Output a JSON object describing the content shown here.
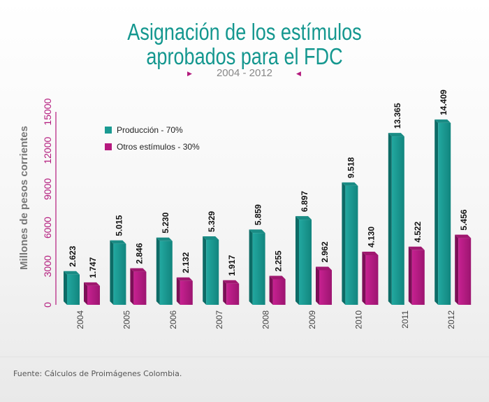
{
  "title_line1": "Asignación de los estímulos",
  "title_line2": "aprobados para el FDC",
  "subtitle": "2004 - 2012",
  "source": "Fuente: Cálculos de Proimágenes Colombia.",
  "colors": {
    "produccion": "#1a9a92",
    "produccion_dark": "#0d6b66",
    "otros": "#b5197e",
    "otros_dark": "#7c0f57",
    "title": "#14978f",
    "accent": "#b3197c"
  },
  "chart_data": {
    "type": "bar",
    "title": "Asignación de los estímulos aprobados para el FDC",
    "subtitle": "2004 - 2012",
    "ylabel": "Millones de pesos corrientes",
    "xlabel": "",
    "ylim": [
      0,
      15000
    ],
    "yticks": [
      "0",
      "3000",
      "6000",
      "9000",
      "12000",
      "15000"
    ],
    "ytick_values": [
      0,
      3000,
      6000,
      9000,
      12000,
      15000
    ],
    "categories": [
      "2004",
      "2005",
      "2006",
      "2007",
      "2008",
      "2009",
      "2010",
      "2011",
      "2012"
    ],
    "series": [
      {
        "name": "Producción - 70%",
        "values": [
          2623,
          5015,
          5230,
          5329,
          5859,
          6897,
          9518,
          13365,
          14409
        ],
        "labels": [
          "2.623",
          "5.015",
          "5.230",
          "5.329",
          "5.859",
          "6.897",
          "9.518",
          "13.365",
          "14.409"
        ]
      },
      {
        "name": "Otros estímulos - 30%",
        "values": [
          1747,
          2846,
          2132,
          1917,
          2255,
          2962,
          4130,
          4522,
          5456
        ],
        "labels": [
          "1.747",
          "2.846",
          "2.132",
          "1.917",
          "2.255",
          "2.962",
          "4.130",
          "4.522",
          "5.456"
        ]
      }
    ],
    "legend_position": "top-left"
  }
}
